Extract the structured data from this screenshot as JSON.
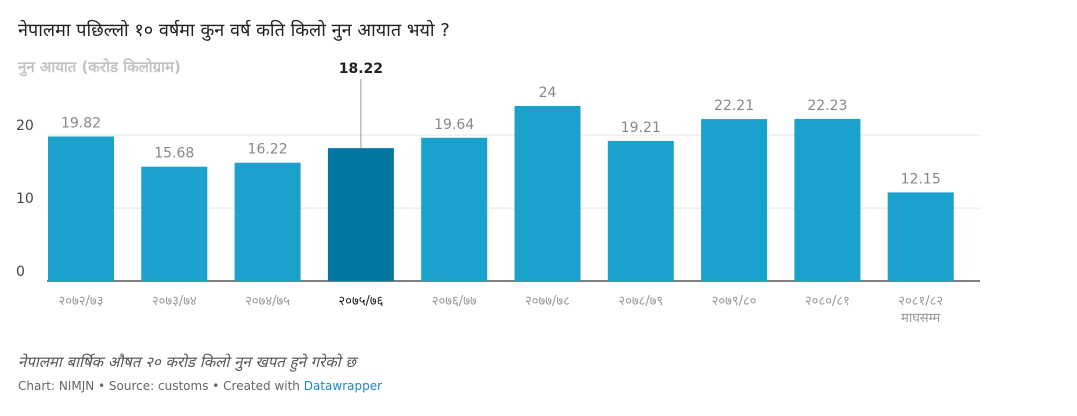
{
  "title": "नेपालमा पछिल्लो १० वर्षमा कुन वर्ष कति किलो नुन आयात भयो ?",
  "footer": {
    "note": "नेपालमा बार्षिक औषत २० करोड किलो नुन खपत हुने गरेको छ",
    "credit_prefix": "Chart: NIMJN • Source: customs • Created with ",
    "credit_link": "Datawrapper"
  },
  "colors": {
    "bar": "#1aa1cc",
    "highlight": "#0477a0",
    "grid": "#e6e6e6",
    "axis": "#333333"
  },
  "chart_data": {
    "type": "bar",
    "ylabel": "नुन आयात (करोड किलोग्राम)",
    "categories": [
      "२०७२/७३",
      "२०७३/७४",
      "२०७४/७५",
      "२०७५/७६",
      "२०७६/७७",
      "२०७७/७८",
      "२०७८/७९",
      "२०७९/८०",
      "२०८०/८१",
      "२०८१/८२\nमाघसम्म"
    ],
    "values": [
      19.82,
      15.68,
      16.22,
      18.22,
      19.64,
      24,
      19.21,
      22.21,
      22.23,
      12.15
    ],
    "value_labels": [
      "19.82",
      "15.68",
      "16.22",
      "18.22",
      "19.64",
      "24",
      "19.21",
      "22.21",
      "22.23",
      "12.15"
    ],
    "highlight_index": 3,
    "yticks": [
      0,
      10,
      20
    ],
    "ylim": [
      0,
      24
    ],
    "grid": true
  }
}
